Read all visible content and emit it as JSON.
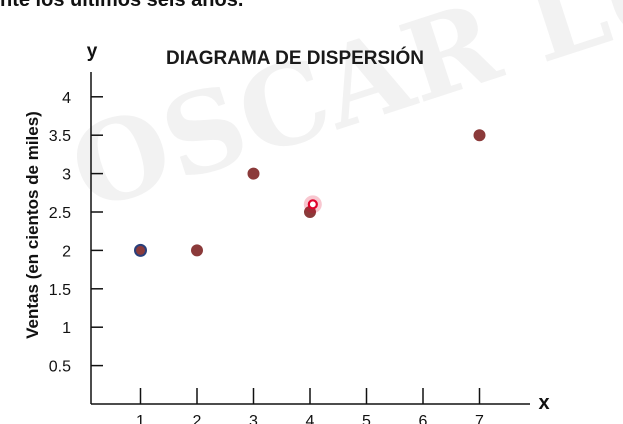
{
  "header": {
    "partial_text": "nte los últimos seis años."
  },
  "watermark": "OSCAR LU",
  "chart_data": {
    "type": "scatter",
    "title": "DIAGRAMA DE DISPERSIÓN",
    "xlabel": "x",
    "ylabel": "Ventas (en cientos de miles)",
    "y_axis_letter": "y",
    "xlim": [
      0,
      7.6
    ],
    "ylim": [
      0,
      4.3
    ],
    "x_ticks": [
      1,
      2,
      3,
      4,
      5,
      6,
      7
    ],
    "y_ticks": [
      0.5,
      1,
      1.5,
      2,
      2.5,
      3,
      3.5,
      4
    ],
    "y_tick_labels": [
      "0.5",
      "1",
      "1.5",
      "2",
      "2.5",
      "3",
      "3.5",
      "4"
    ],
    "grid": false,
    "points": [
      {
        "x": 1,
        "y": 2
      },
      {
        "x": 2,
        "y": 2
      },
      {
        "x": 3,
        "y": 3
      },
      {
        "x": 4,
        "y": 2.5
      },
      {
        "x": 7,
        "y": 3.5
      }
    ],
    "highlight": {
      "x": 4.05,
      "y": 2.6
    },
    "colors": {
      "point": "#8b3a3a",
      "first_point_outline": "#2a3f7a",
      "axis": "#111111",
      "highlight": "#e0002a"
    }
  }
}
